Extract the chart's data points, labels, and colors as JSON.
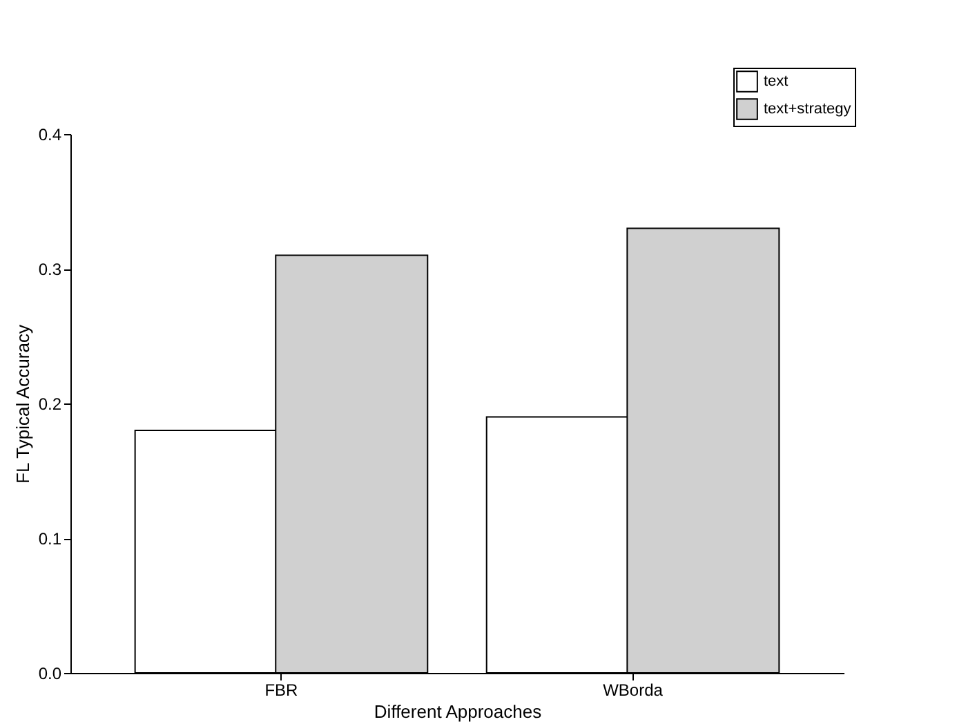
{
  "chart_data": {
    "type": "bar",
    "xlabel": "Different Approaches",
    "ylabel": "FL Typical Accuracy",
    "categories": [
      "FBR",
      "WBorda"
    ],
    "series": [
      {
        "name": "text",
        "color": "#ffffff",
        "values": [
          0.18,
          0.19
        ]
      },
      {
        "name": "text+strategy",
        "color": "#d0d0d0",
        "values": [
          0.31,
          0.33
        ]
      }
    ],
    "ylim": [
      0,
      0.4
    ],
    "yticks": [
      {
        "value": 0,
        "label": "0.0"
      },
      0.1,
      0.2,
      0.3,
      0.4
    ],
    "grid": false,
    "legend": "top right"
  }
}
